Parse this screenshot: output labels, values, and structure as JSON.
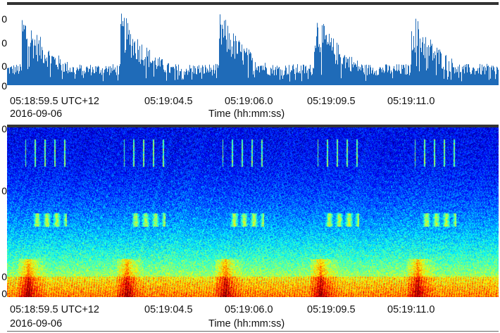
{
  "waveform": {
    "y_ticks": [
      "0",
      "0",
      "0",
      "0"
    ]
  },
  "spectrogram": {
    "y_ticks": [
      "0",
      "0",
      "0",
      "0"
    ]
  },
  "top_axis": {
    "tick_labels": [
      "05:18:59.5 UTC+12",
      "05:19:04.5",
      "05:19:06.0",
      "05:19:09.5",
      "05:19:11.0"
    ],
    "date": "2016-09-06",
    "title": "Time (hh:mm:ss)"
  },
  "bottom_axis": {
    "tick_labels": [
      "05:18:59.5 UTC+12",
      "05:19:04.5",
      "05:19:06.0",
      "05:19:09.5",
      "05:19:11.0"
    ],
    "date": "2016-09-06",
    "title": "Time (hh:mm:ss)"
  },
  "colors": {
    "waveform": "#1f6bb8",
    "spectrogram_low": "#000080",
    "spectrogram_high": "#8b0000"
  }
}
